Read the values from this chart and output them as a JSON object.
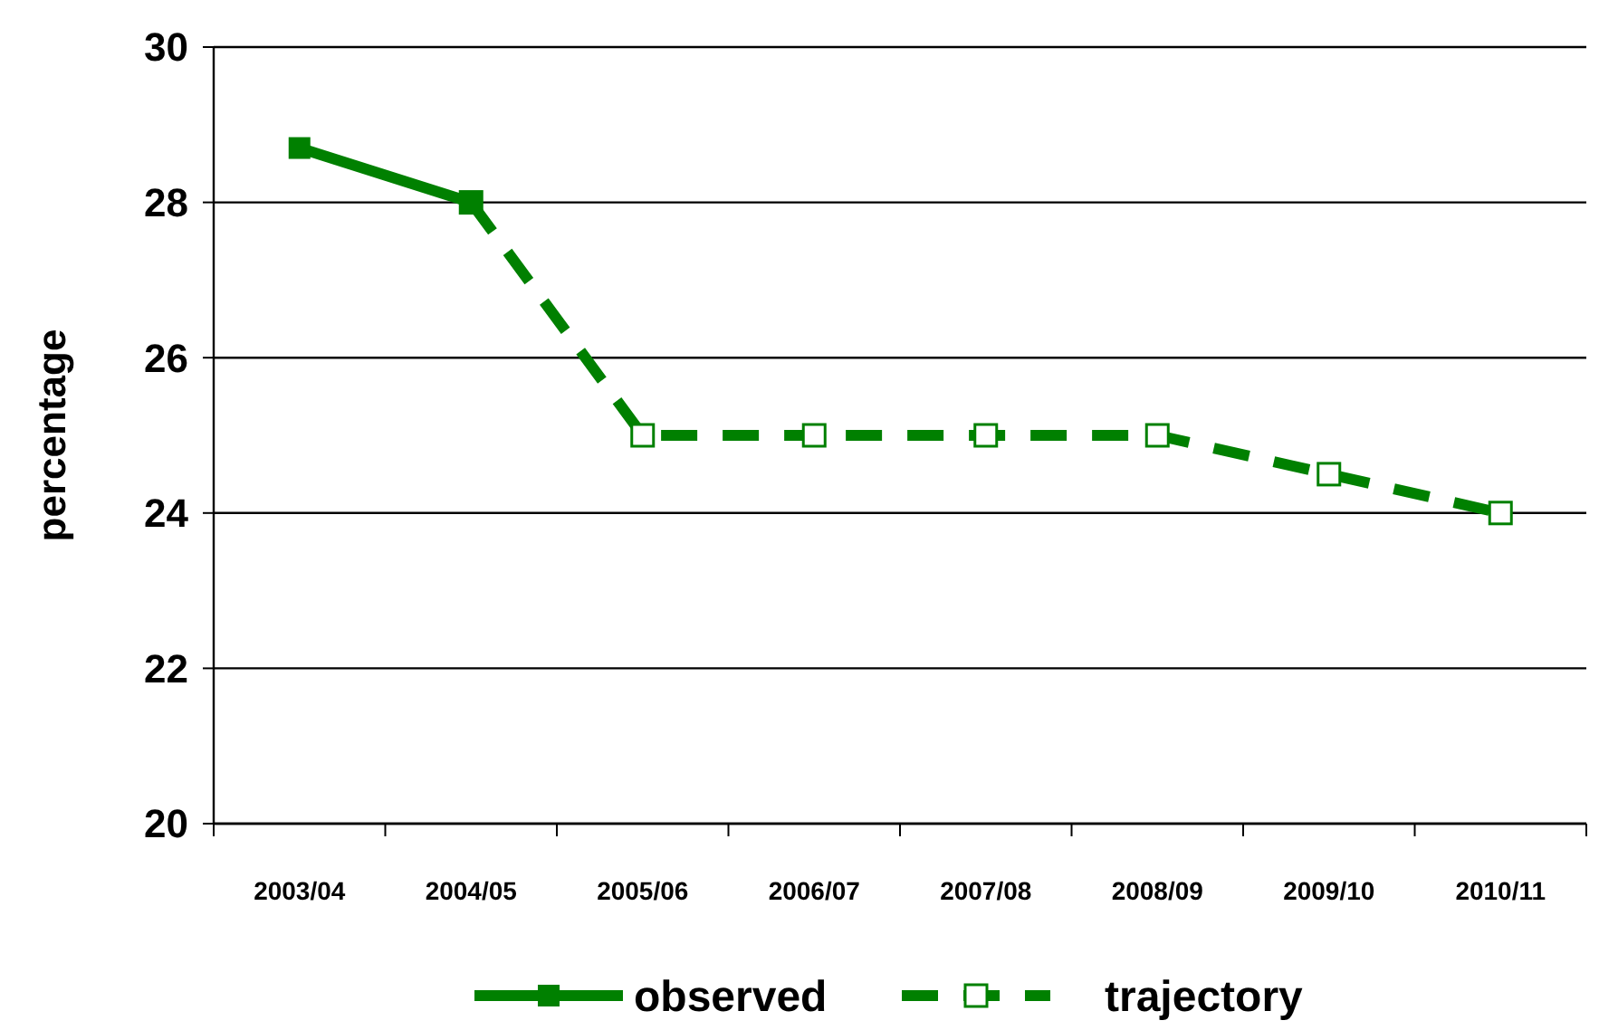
{
  "chart_data": {
    "type": "line",
    "ylabel": "percentage",
    "categories": [
      "2003/04",
      "2004/05",
      "2005/06",
      "2006/07",
      "2007/08",
      "2008/09",
      "2009/10",
      "2010/11"
    ],
    "series": [
      {
        "name": "trajectory",
        "color": "#008000",
        "line_style": "dashed",
        "marker": "square",
        "values": [
          null,
          28,
          25,
          25,
          25,
          25,
          24.5,
          24
        ]
      },
      {
        "name": "observed",
        "color": "#008000",
        "line_style": "solid",
        "marker": "square",
        "values": [
          28.7,
          28,
          null,
          null,
          null,
          null,
          null,
          null
        ]
      }
    ],
    "ylim": [
      20,
      30
    ],
    "yticks": [
      20,
      22,
      24,
      26,
      28,
      30
    ],
    "grid": "y",
    "legend": "bottom"
  }
}
